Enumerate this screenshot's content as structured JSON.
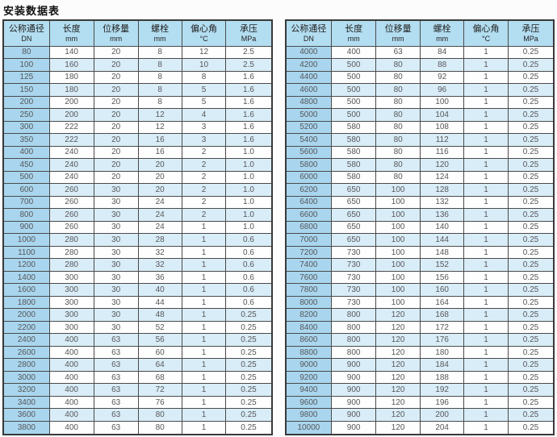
{
  "title": "安装数据表",
  "colors": {
    "page_bg": "#fcfcfc",
    "header_bg": "#b3ddf0",
    "dn_col_bg": "#a9d6ee",
    "alt_row_bg": "#d9edf8",
    "row_bg": "#fefefe",
    "border": "#4a4a4a",
    "outer_border": "#393939",
    "text": "#57575a",
    "header_text": "#1f1f1f",
    "title_text": "#111111"
  },
  "columns": [
    {
      "key": "dn",
      "label": "公称通径",
      "unit": "DN"
    },
    {
      "key": "length",
      "label": "长度",
      "unit": "mm"
    },
    {
      "key": "displacement",
      "label": "位移量",
      "unit": "mm"
    },
    {
      "key": "bolt",
      "label": "螺栓",
      "unit": "mm"
    },
    {
      "key": "eccentric-angle",
      "label": "偏心角",
      "unit": "°C"
    },
    {
      "key": "pressure",
      "label": "承压",
      "unit": "MPa"
    }
  ],
  "tables": [
    {
      "name": "left",
      "rows": [
        [
          "80",
          "140",
          "20",
          "8",
          "12",
          "2.5"
        ],
        [
          "100",
          "160",
          "20",
          "8",
          "10",
          "2.5"
        ],
        [
          "125",
          "180",
          "20",
          "8",
          "8",
          "1.6"
        ],
        [
          "150",
          "180",
          "20",
          "8",
          "5",
          "1.6"
        ],
        [
          "200",
          "200",
          "20",
          "8",
          "5",
          "1.6"
        ],
        [
          "250",
          "200",
          "20",
          "12",
          "4",
          "1.6"
        ],
        [
          "300",
          "222",
          "20",
          "12",
          "3",
          "1.6"
        ],
        [
          "350",
          "222",
          "20",
          "16",
          "3",
          "1.6"
        ],
        [
          "400",
          "240",
          "20",
          "16",
          "2",
          "1.0"
        ],
        [
          "450",
          "240",
          "20",
          "20",
          "2",
          "1.0"
        ],
        [
          "500",
          "240",
          "20",
          "20",
          "2",
          "1.0"
        ],
        [
          "600",
          "260",
          "30",
          "20",
          "2",
          "1.0"
        ],
        [
          "700",
          "260",
          "30",
          "24",
          "2",
          "1.0"
        ],
        [
          "800",
          "260",
          "30",
          "24",
          "2",
          "1.0"
        ],
        [
          "900",
          "260",
          "30",
          "24",
          "1",
          "1.0"
        ],
        [
          "1000",
          "280",
          "30",
          "28",
          "1",
          "0.6"
        ],
        [
          "1100",
          "280",
          "30",
          "32",
          "1",
          "0.6"
        ],
        [
          "1200",
          "280",
          "30",
          "32",
          "1",
          "0.6"
        ],
        [
          "1400",
          "300",
          "30",
          "36",
          "1",
          "0.6"
        ],
        [
          "1600",
          "300",
          "30",
          "40",
          "1",
          "0.6"
        ],
        [
          "1800",
          "300",
          "30",
          "44",
          "1",
          "0.6"
        ],
        [
          "2000",
          "300",
          "30",
          "48",
          "1",
          "0.25"
        ],
        [
          "2200",
          "300",
          "30",
          "52",
          "1",
          "0.25"
        ],
        [
          "2400",
          "400",
          "63",
          "56",
          "1",
          "0.25"
        ],
        [
          "2600",
          "400",
          "63",
          "60",
          "1",
          "0.25"
        ],
        [
          "2800",
          "400",
          "63",
          "64",
          "1",
          "0.25"
        ],
        [
          "3000",
          "400",
          "63",
          "68",
          "1",
          "0.25"
        ],
        [
          "3200",
          "400",
          "63",
          "72",
          "1",
          "0.25"
        ],
        [
          "3400",
          "400",
          "63",
          "76",
          "1",
          "0.25"
        ],
        [
          "3600",
          "400",
          "63",
          "80",
          "1",
          "0.25"
        ],
        [
          "3800",
          "400",
          "63",
          "80",
          "1",
          "0.25"
        ]
      ]
    },
    {
      "name": "right",
      "rows": [
        [
          "4000",
          "400",
          "63",
          "84",
          "1",
          "0.25"
        ],
        [
          "4200",
          "500",
          "80",
          "88",
          "1",
          "0.25"
        ],
        [
          "4400",
          "500",
          "80",
          "92",
          "1",
          "0.25"
        ],
        [
          "4600",
          "500",
          "80",
          "96",
          "1",
          "0.25"
        ],
        [
          "4800",
          "500",
          "80",
          "100",
          "1",
          "0.25"
        ],
        [
          "5000",
          "500",
          "80",
          "104",
          "1",
          "0.25"
        ],
        [
          "5200",
          "580",
          "80",
          "108",
          "1",
          "0.25"
        ],
        [
          "5400",
          "580",
          "80",
          "112",
          "1",
          "0.25"
        ],
        [
          "5600",
          "580",
          "80",
          "116",
          "1",
          "0.25"
        ],
        [
          "5800",
          "580",
          "80",
          "120",
          "1",
          "0.25"
        ],
        [
          "6000",
          "580",
          "80",
          "124",
          "1",
          "0.25"
        ],
        [
          "6200",
          "650",
          "100",
          "128",
          "1",
          "0.25"
        ],
        [
          "6400",
          "650",
          "100",
          "132",
          "1",
          "0.25"
        ],
        [
          "6600",
          "650",
          "100",
          "136",
          "1",
          "0.25"
        ],
        [
          "6800",
          "650",
          "100",
          "140",
          "1",
          "0.25"
        ],
        [
          "7000",
          "650",
          "100",
          "144",
          "1",
          "0.25"
        ],
        [
          "7200",
          "730",
          "100",
          "148",
          "1",
          "0.25"
        ],
        [
          "7400",
          "730",
          "100",
          "152",
          "1",
          "0.25"
        ],
        [
          "7600",
          "730",
          "100",
          "156",
          "1",
          "0.25"
        ],
        [
          "7800",
          "730",
          "100",
          "160",
          "1",
          "0.25"
        ],
        [
          "8000",
          "730",
          "100",
          "164",
          "1",
          "0.25"
        ],
        [
          "8200",
          "800",
          "120",
          "168",
          "1",
          "0.25"
        ],
        [
          "8400",
          "800",
          "120",
          "172",
          "1",
          "0.25"
        ],
        [
          "8600",
          "800",
          "120",
          "176",
          "1",
          "0.25"
        ],
        [
          "8800",
          "800",
          "120",
          "180",
          "1",
          "0.25"
        ],
        [
          "9000",
          "900",
          "120",
          "184",
          "1",
          "0.25"
        ],
        [
          "9200",
          "900",
          "120",
          "188",
          "1",
          "0.25"
        ],
        [
          "9400",
          "900",
          "120",
          "192",
          "1",
          "0.25"
        ],
        [
          "9600",
          "900",
          "120",
          "196",
          "1",
          "0.25"
        ],
        [
          "9800",
          "900",
          "120",
          "200",
          "1",
          "0.25"
        ],
        [
          "10000",
          "900",
          "120",
          "204",
          "1",
          "0.25"
        ]
      ]
    }
  ]
}
